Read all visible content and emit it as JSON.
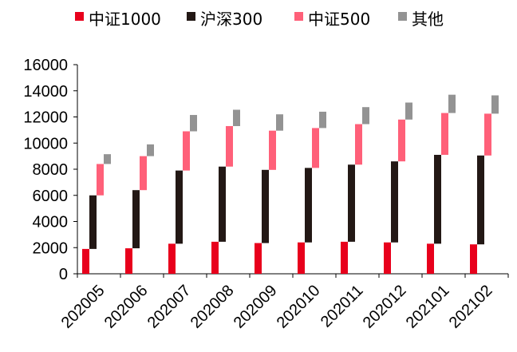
{
  "chart_data": {
    "type": "bar",
    "subtype": "stacked-floating",
    "title": "",
    "xlabel": "",
    "ylabel": "",
    "ylim": [
      0,
      16000
    ],
    "yticks": [
      0,
      2000,
      4000,
      6000,
      8000,
      10000,
      12000,
      14000,
      16000
    ],
    "grid": false,
    "legend_position": "top",
    "categories": [
      "202005",
      "202006",
      "202007",
      "202008",
      "202009",
      "202010",
      "202011",
      "202012",
      "202101",
      "202102"
    ],
    "series": [
      {
        "name": "中证1000",
        "color": "#e8001c",
        "values": [
          1900,
          1950,
          2300,
          2450,
          2350,
          2400,
          2450,
          2400,
          2300,
          2250
        ]
      },
      {
        "name": "沪深300",
        "color": "#231815",
        "values": [
          4100,
          4450,
          5600,
          5750,
          5600,
          5700,
          5900,
          6200,
          6800,
          6800
        ]
      },
      {
        "name": "中证500",
        "color": "#ff6079",
        "values": [
          2400,
          2600,
          3000,
          3100,
          3000,
          3050,
          3100,
          3200,
          3200,
          3200
        ]
      },
      {
        "name": "其他",
        "color": "#939393",
        "values": [
          750,
          900,
          1250,
          1250,
          1250,
          1250,
          1300,
          1300,
          1400,
          1400
        ]
      }
    ]
  }
}
